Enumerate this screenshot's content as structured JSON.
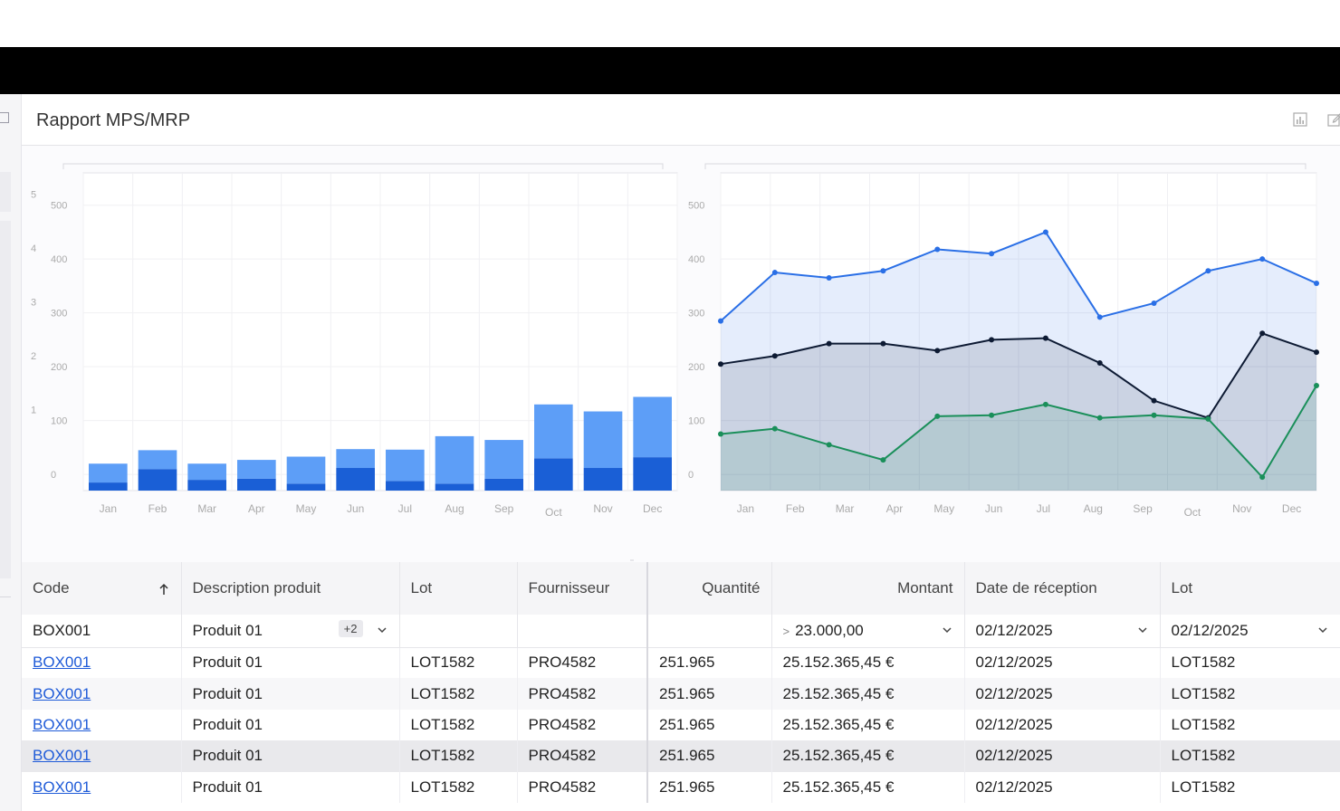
{
  "header": {
    "title": "Rapport MPS/MRP"
  },
  "icons": {
    "chart": "bar-chart-icon",
    "edit": "edit-icon",
    "sidebar": "sidebar-toggle-icon"
  },
  "chart_data": [
    {
      "type": "bar",
      "stacked": true,
      "categories": [
        "Jan",
        "Feb",
        "Mar",
        "Apr",
        "May",
        "Jun",
        "Jul",
        "Aug",
        "Sep",
        "Oct",
        "Nov",
        "Dec"
      ],
      "series": [
        {
          "color": "#1a5fd6",
          "values": [
            -15,
            10,
            -10,
            -8,
            -17,
            12,
            -12,
            -17,
            -8,
            30,
            12,
            32
          ]
        },
        {
          "color": "#5d9ef7",
          "values": [
            35,
            35,
            30,
            35,
            50,
            35,
            58,
            88,
            72,
            100,
            105,
            112
          ]
        }
      ],
      "ylim": [
        -30,
        560
      ],
      "yticks": [
        0,
        100,
        200,
        300,
        400,
        500
      ],
      "secondary_yticks": [
        1,
        2,
        3,
        4,
        5
      ]
    },
    {
      "type": "area",
      "categories": [
        "Jan",
        "Feb",
        "Mar",
        "Apr",
        "May",
        "Jun",
        "Jul",
        "Aug",
        "Sep",
        "Oct",
        "Nov",
        "Dec"
      ],
      "series": [
        {
          "color": "#2a6fe6",
          "values": [
            285,
            375,
            365,
            378,
            418,
            410,
            450,
            292,
            318,
            378,
            400,
            355
          ]
        },
        {
          "color": "#0d1a33",
          "values": [
            205,
            220,
            243,
            243,
            230,
            250,
            253,
            207,
            137,
            105,
            262,
            227
          ]
        },
        {
          "color": "#1a8f5a",
          "values": [
            75,
            85,
            55,
            27,
            108,
            110,
            130,
            105,
            110,
            103,
            -5,
            165
          ]
        }
      ],
      "ylim": [
        -30,
        560
      ],
      "yticks": [
        0,
        100,
        200,
        300,
        400,
        500
      ]
    }
  ],
  "grid": {
    "columns": [
      "Code",
      "Description produit",
      "Lot",
      "Fournisseur",
      "Quantité",
      "Montant",
      "Date de réception",
      "Lot"
    ],
    "filters": {
      "code": "BOX001",
      "description": "Produit 01",
      "description_badge": "+2",
      "montant_op": ">",
      "montant": "23.000,00",
      "date": "02/12/2025",
      "lot": "02/12/2025"
    },
    "rows": [
      [
        "BOX001",
        "Produit 01",
        "LOT1582",
        "PRO4582",
        "251.965",
        "25.152.365,45 €",
        "02/12/2025",
        "LOT1582"
      ],
      [
        "BOX001",
        "Produit 01",
        "LOT1582",
        "PRO4582",
        "251.965",
        "25.152.365,45 €",
        "02/12/2025",
        "LOT1582"
      ],
      [
        "BOX001",
        "Produit 01",
        "LOT1582",
        "PRO4582",
        "251.965",
        "25.152.365,45 €",
        "02/12/2025",
        "LOT1582"
      ],
      [
        "BOX001",
        "Produit 01",
        "LOT1582",
        "PRO4582",
        "251.965",
        "25.152.365,45 €",
        "02/12/2025",
        "LOT1582"
      ],
      [
        "BOX001",
        "Produit 01",
        "LOT1582",
        "PRO4582",
        "251.965",
        "25.152.365,45 €",
        "02/12/2025",
        "LOT1582"
      ]
    ]
  }
}
